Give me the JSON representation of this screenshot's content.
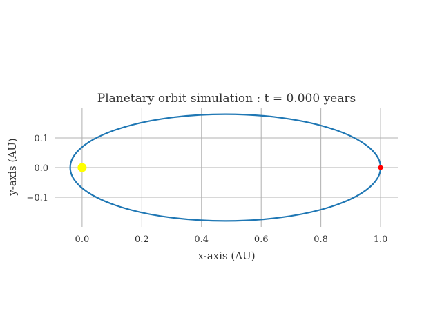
{
  "chart_data": {
    "type": "scatter",
    "title": "Planetary orbit simulation : t = 0.000 years",
    "xlabel": "x-axis (AU)",
    "ylabel": "y-axis (AU)",
    "xlim": [
      -0.09,
      1.06
    ],
    "ylim": [
      -0.2,
      0.2
    ],
    "xticks": [
      "0.0",
      "0.2",
      "0.4",
      "0.6",
      "0.8",
      "1.0"
    ],
    "xtick_values": [
      0.0,
      0.2,
      0.4,
      0.6,
      0.8,
      1.0
    ],
    "yticks": [
      "−0.1",
      "0.0",
      "0.1"
    ],
    "ytick_values": [
      -0.1,
      0.0,
      0.1
    ],
    "grid": true,
    "orbit": {
      "center_x": 0.48,
      "center_y": 0.0,
      "semi_major": 0.52,
      "semi_minor": 0.18,
      "color": "#1f77b4"
    },
    "sun": {
      "x": 0.0,
      "y": 0.0,
      "color": "#ffff00"
    },
    "planet": {
      "x": 1.0,
      "y": 0.0,
      "color": "#ff0000"
    }
  }
}
